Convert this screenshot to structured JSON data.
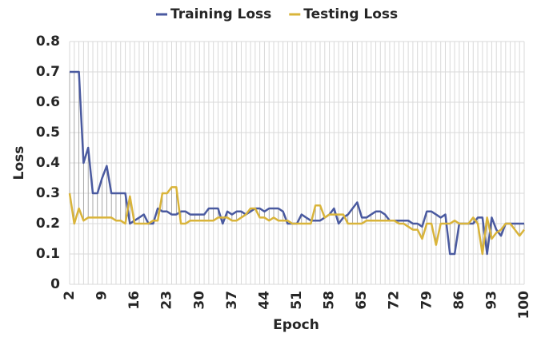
{
  "chart_data": {
    "type": "line",
    "x_label": "Epoch",
    "y_label": "Loss",
    "categories": [
      2,
      null,
      null,
      null,
      null,
      null,
      null,
      9,
      null,
      null,
      null,
      null,
      null,
      null,
      16,
      null,
      null,
      null,
      null,
      null,
      null,
      23,
      null,
      null,
      null,
      null,
      null,
      null,
      30,
      null,
      null,
      null,
      null,
      null,
      null,
      37,
      null,
      null,
      null,
      null,
      null,
      null,
      44,
      null,
      null,
      null,
      null,
      null,
      null,
      51,
      null,
      null,
      null,
      null,
      null,
      null,
      58,
      null,
      null,
      null,
      null,
      null,
      null,
      65,
      null,
      null,
      null,
      null,
      null,
      null,
      72,
      null,
      null,
      null,
      null,
      null,
      null,
      79,
      null,
      null,
      null,
      null,
      null,
      null,
      86,
      null,
      null,
      null,
      null,
      null,
      null,
      93,
      null,
      null,
      null,
      null,
      null,
      null,
      100
    ],
    "series": [
      {
        "name": "Training Loss",
        "color": "#4a5aa0",
        "values": [
          0.7,
          0.7,
          0.7,
          0.4,
          0.45,
          0.3,
          0.3,
          0.35,
          0.39,
          0.3,
          0.3,
          0.3,
          0.3,
          0.2,
          0.21,
          0.22,
          0.23,
          0.2,
          0.2,
          0.25,
          0.24,
          0.24,
          0.23,
          0.23,
          0.24,
          0.24,
          0.23,
          0.23,
          0.23,
          0.23,
          0.25,
          0.25,
          0.25,
          0.2,
          0.24,
          0.23,
          0.24,
          0.24,
          0.23,
          0.24,
          0.25,
          0.25,
          0.24,
          0.25,
          0.25,
          0.25,
          0.24,
          0.2,
          0.2,
          0.2,
          0.23,
          0.22,
          0.21,
          0.21,
          0.21,
          0.22,
          0.23,
          0.25,
          0.2,
          0.22,
          0.23,
          0.25,
          0.27,
          0.22,
          0.22,
          0.23,
          0.24,
          0.24,
          0.23,
          0.21,
          0.21,
          0.21,
          0.21,
          0.21,
          0.2,
          0.2,
          0.19,
          0.24,
          0.24,
          0.23,
          0.22,
          0.23,
          0.1,
          0.1,
          0.2,
          0.2,
          0.2,
          0.2,
          0.22,
          0.22,
          0.1,
          0.22,
          0.18,
          0.16,
          0.2,
          0.2,
          0.2,
          0.2,
          0.2
        ]
      },
      {
        "name": "Testing Loss",
        "color": "#d9b43a",
        "values": [
          0.3,
          0.2,
          0.25,
          0.21,
          0.22,
          0.22,
          0.22,
          0.22,
          0.22,
          0.22,
          0.21,
          0.21,
          0.2,
          0.29,
          0.2,
          0.2,
          0.2,
          0.2,
          0.21,
          0.21,
          0.3,
          0.3,
          0.32,
          0.32,
          0.2,
          0.2,
          0.21,
          0.21,
          0.21,
          0.21,
          0.21,
          0.21,
          0.22,
          0.22,
          0.22,
          0.21,
          0.21,
          0.22,
          0.23,
          0.25,
          0.25,
          0.22,
          0.22,
          0.21,
          0.22,
          0.21,
          0.21,
          0.21,
          0.2,
          0.2,
          0.2,
          0.2,
          0.2,
          0.26,
          0.26,
          0.22,
          0.23,
          0.23,
          0.23,
          0.23,
          0.2,
          0.2,
          0.2,
          0.2,
          0.21,
          0.21,
          0.21,
          0.21,
          0.21,
          0.21,
          0.21,
          0.2,
          0.2,
          0.19,
          0.18,
          0.18,
          0.15,
          0.2,
          0.2,
          0.13,
          0.2,
          0.2,
          0.2,
          0.21,
          0.2,
          0.2,
          0.2,
          0.22,
          0.2,
          0.1,
          0.22,
          0.15,
          0.17,
          0.18,
          0.2,
          0.2,
          0.18,
          0.16,
          0.18
        ]
      }
    ],
    "ylim": [
      0,
      0.8
    ],
    "yticks": [
      0,
      0.1,
      0.2,
      0.3,
      0.4,
      0.5,
      0.6,
      0.7,
      0.8
    ],
    "grid": true,
    "legend": "top"
  }
}
